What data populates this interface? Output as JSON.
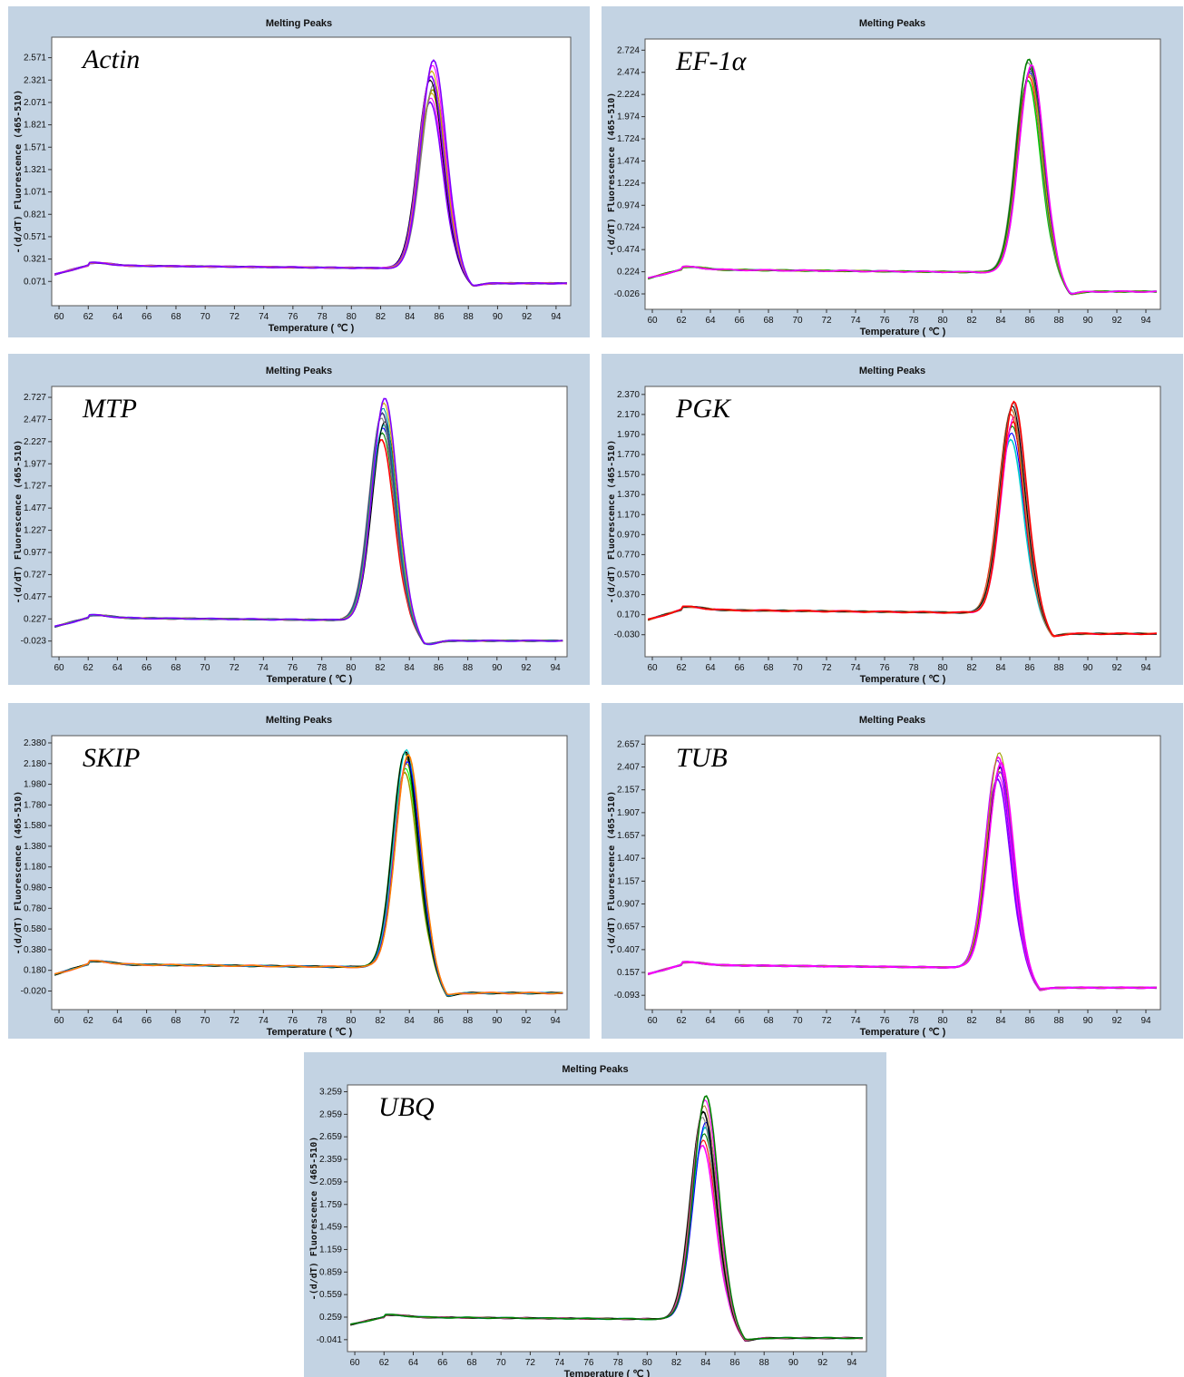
{
  "palette": [
    "#ff0000",
    "#008000",
    "#0000ff",
    "#00cccc",
    "#ff00ff",
    "#ccaa00",
    "#000000",
    "#808080",
    "#a0a000",
    "#8000ff",
    "#00a0a0",
    "#c08040",
    "#ff8000",
    "#00ff00",
    "#404080"
  ],
  "chart_data": [
    {
      "type": "line",
      "title": "Melting Peaks",
      "gene": "Actin",
      "xlabel": "Temperature ( ℃ )",
      "ylabel": "-(d/dT) Fluorescence (465-510)",
      "xlim": [
        59.5,
        95
      ],
      "x_ticks": [
        60,
        62,
        64,
        66,
        68,
        70,
        72,
        74,
        76,
        78,
        80,
        82,
        84,
        86,
        88,
        90,
        92,
        94
      ],
      "ylim": [
        -0.2,
        2.8
      ],
      "y_ticks": [
        "2.571",
        "2.321",
        "2.071",
        "1.821",
        "1.571",
        "1.321",
        "1.071",
        "0.821",
        "0.571",
        "0.321",
        "0.071"
      ],
      "peak_x": 85.5,
      "peak_y": [
        2.07,
        2.12,
        2.18,
        2.22,
        2.27,
        2.32,
        2.36,
        2.42,
        2.49,
        2.55
      ],
      "baseline": 0.25,
      "plateau_x": 88,
      "plateau_y": 0.05,
      "series_colors": [
        "#8000ff",
        "#ff00ff",
        "#ccaa00",
        "#a0a000",
        "#808080",
        "#000000",
        "#8000ff",
        "#ccaa00",
        "#ff00ff",
        "#8000ff"
      ]
    },
    {
      "type": "line",
      "title": "Melting Peaks",
      "gene": "EF-1α",
      "xlabel": "Temperature ( ℃ )",
      "ylabel": "-(d/dT) Fluorescence (465-510)",
      "xlim": [
        59.5,
        95
      ],
      "x_ticks": [
        60,
        62,
        64,
        66,
        68,
        70,
        72,
        74,
        76,
        78,
        80,
        82,
        84,
        86,
        88,
        90,
        92,
        94
      ],
      "ylim": [
        -0.2,
        2.85
      ],
      "y_ticks": [
        "2.724",
        "2.474",
        "2.224",
        "1.974",
        "1.724",
        "1.474",
        "1.224",
        "0.974",
        "0.724",
        "0.474",
        "0.224",
        "-0.026"
      ],
      "peak_x": 86,
      "peak_y": [
        2.38,
        2.43,
        2.48,
        2.52,
        2.55,
        2.58,
        2.62,
        2.45,
        2.5,
        2.56
      ],
      "baseline": 0.25,
      "plateau_x": 88.5,
      "plateau_y": 0.0,
      "series_colors": [
        "#00cc00",
        "#ff0000",
        "#0000ff",
        "#000000",
        "#00cccc",
        "#808080",
        "#008000",
        "#ccaa00",
        "#404080",
        "#ff00ff"
      ]
    },
    {
      "type": "line",
      "title": "Melting Peaks",
      "gene": "MTP",
      "xlabel": "Temperature ( ℃ )",
      "ylabel": "-(d/dT) Fluorescence (465-510)",
      "xlim": [
        59.5,
        94.8
      ],
      "x_ticks": [
        60,
        62,
        64,
        66,
        68,
        70,
        72,
        74,
        76,
        78,
        80,
        82,
        84,
        86,
        88,
        90,
        92,
        94
      ],
      "ylim": [
        -0.2,
        2.85
      ],
      "y_ticks": [
        "2.727",
        "2.477",
        "2.227",
        "1.977",
        "1.727",
        "1.477",
        "1.227",
        "0.977",
        "0.727",
        "0.477",
        "0.227",
        "-0.023"
      ],
      "peak_x": 82.2,
      "peak_y": [
        2.25,
        2.32,
        2.38,
        2.42,
        2.46,
        2.5,
        2.55,
        2.6,
        2.66,
        2.72
      ],
      "baseline": 0.24,
      "plateau_x": 85.2,
      "plateau_y": -0.02,
      "series_colors": [
        "#ff0000",
        "#008000",
        "#0000ff",
        "#00cccc",
        "#000000",
        "#808080",
        "#404080",
        "#00a0a0",
        "#ccaa00",
        "#8000ff"
      ]
    },
    {
      "type": "line",
      "title": "Melting Peaks",
      "gene": "PGK",
      "xlabel": "Temperature ( ℃ )",
      "ylabel": "-(d/dT) Fluorescence (465-510)",
      "xlim": [
        59.5,
        95
      ],
      "x_ticks": [
        60,
        62,
        64,
        66,
        68,
        70,
        72,
        74,
        76,
        78,
        80,
        82,
        84,
        86,
        88,
        90,
        92,
        94
      ],
      "ylim": [
        -0.25,
        2.45
      ],
      "y_ticks": [
        "2.370",
        "2.170",
        "1.970",
        "1.770",
        "1.570",
        "1.370",
        "1.170",
        "0.970",
        "0.770",
        "0.570",
        "0.370",
        "0.170",
        "-0.030"
      ],
      "peak_x": 84.8,
      "peak_y": [
        1.92,
        1.98,
        2.05,
        2.1,
        2.15,
        2.18,
        2.22,
        2.25,
        2.28,
        2.3
      ],
      "baseline": 0.22,
      "plateau_x": 87.2,
      "plateau_y": -0.02,
      "series_colors": [
        "#00cccc",
        "#0000ff",
        "#008000",
        "#ff0000",
        "#ff00ff",
        "#ff0000",
        "#c08040",
        "#000000",
        "#808080",
        "#ff0000"
      ]
    },
    {
      "type": "line",
      "title": "Melting Peaks",
      "gene": "SKIP",
      "xlabel": "Temperature ( ℃ )",
      "ylabel": "-(d/dT) Fluorescence (465-510)",
      "xlim": [
        59.5,
        94.8
      ],
      "x_ticks": [
        60,
        62,
        64,
        66,
        68,
        70,
        72,
        74,
        76,
        78,
        80,
        82,
        84,
        86,
        88,
        90,
        92,
        94
      ],
      "ylim": [
        -0.2,
        2.45
      ],
      "y_ticks": [
        "2.380",
        "2.180",
        "1.980",
        "1.780",
        "1.580",
        "1.380",
        "1.180",
        "0.980",
        "0.780",
        "0.580",
        "0.380",
        "0.180",
        "-0.020"
      ],
      "peak_x": 83.8,
      "peak_y": [
        2.1,
        2.14,
        2.18,
        2.22,
        2.25,
        2.28,
        2.3,
        2.32,
        2.2,
        2.26
      ],
      "baseline": 0.24,
      "plateau_x": 86.2,
      "plateau_y": -0.04,
      "series_colors": [
        "#a0a000",
        "#00ff00",
        "#ccaa00",
        "#ff00ff",
        "#ff0000",
        "#008000",
        "#000000",
        "#00cccc",
        "#0000ff",
        "#ff8000"
      ]
    },
    {
      "type": "line",
      "title": "Melting Peaks",
      "gene": "TUB",
      "xlabel": "Temperature ( ℃ )",
      "ylabel": "-(d/dT) Fluorescence (465-510)",
      "xlim": [
        59.5,
        95
      ],
      "x_ticks": [
        60,
        62,
        64,
        66,
        68,
        70,
        72,
        74,
        76,
        78,
        80,
        82,
        84,
        86,
        88,
        90,
        92,
        94
      ],
      "ylim": [
        -0.25,
        2.75
      ],
      "y_ticks": [
        "2.657",
        "2.407",
        "2.157",
        "1.907",
        "1.657",
        "1.407",
        "1.157",
        "0.907",
        "0.657",
        "0.407",
        "0.157",
        "-0.093"
      ],
      "peak_x": 83.9,
      "peak_y": [
        2.28,
        2.32,
        2.36,
        2.4,
        2.44,
        2.48,
        2.52,
        2.57,
        2.35,
        2.45
      ],
      "baseline": 0.24,
      "plateau_x": 86.2,
      "plateau_y": -0.01,
      "series_colors": [
        "#8000ff",
        "#ff00ff",
        "#ccaa00",
        "#000000",
        "#808080",
        "#8000ff",
        "#ff00ff",
        "#a0a000",
        "#8000ff",
        "#ff00ff"
      ]
    },
    {
      "type": "line",
      "title": "Melting Peaks",
      "gene": "UBQ",
      "xlabel": "Temperature ( ℃ )",
      "ylabel": "-(d/dT) Fluorescence (465-510)",
      "xlim": [
        59.5,
        95
      ],
      "x_ticks": [
        60,
        62,
        64,
        66,
        68,
        70,
        72,
        74,
        76,
        78,
        80,
        82,
        84,
        86,
        88,
        90,
        92,
        94
      ],
      "ylim": [
        -0.2,
        3.35
      ],
      "y_ticks": [
        "3.259",
        "2.959",
        "2.659",
        "2.359",
        "2.059",
        "1.759",
        "1.459",
        "1.159",
        "0.859",
        "0.559",
        "0.259",
        "-0.041"
      ],
      "peak_x": 83.9,
      "peak_y": [
        2.55,
        2.62,
        2.7,
        2.78,
        2.85,
        2.92,
        3.0,
        3.08,
        3.15,
        3.2
      ],
      "baseline": 0.26,
      "plateau_x": 86.5,
      "plateau_y": -0.02,
      "series_colors": [
        "#ff00ff",
        "#ff0000",
        "#008000",
        "#00cccc",
        "#0000ff",
        "#808080",
        "#000000",
        "#c08040",
        "#ff00ff",
        "#008000"
      ]
    }
  ]
}
